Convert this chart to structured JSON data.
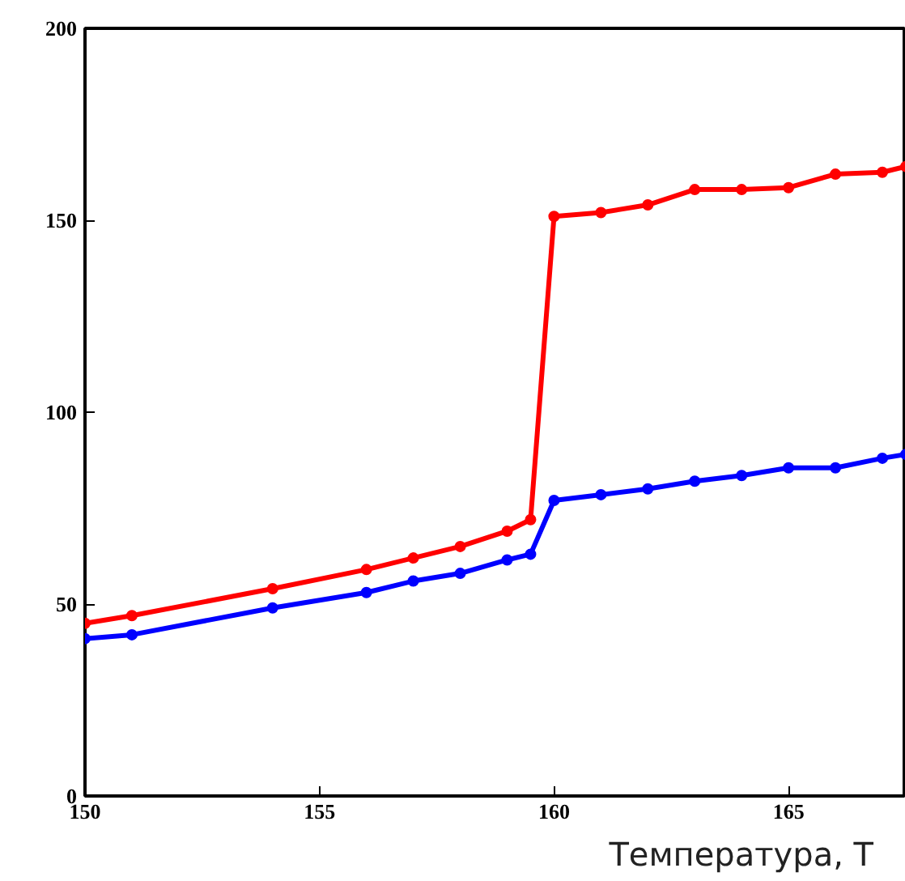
{
  "chart_data": {
    "type": "line",
    "xlabel": "Температура, T",
    "xlim": [
      150,
      167.5
    ],
    "xticks": [
      150,
      155,
      160,
      165
    ],
    "ylim": [
      0,
      200
    ],
    "yticks": [
      0,
      50,
      100,
      150,
      200
    ],
    "grid": false,
    "marker": "circle",
    "line_style": "solid",
    "series": [
      {
        "color": "#ff0000",
        "x": [
          150,
          151,
          154,
          156,
          157,
          158,
          159,
          159.5,
          160,
          161,
          162,
          163,
          164,
          165,
          166,
          167,
          167.5
        ],
        "values": [
          45,
          47,
          54,
          59,
          62,
          65,
          69,
          72,
          151,
          152,
          154,
          158,
          158,
          158.5,
          162,
          162.5,
          164
        ]
      },
      {
        "color": "#0000ff",
        "x": [
          150,
          151,
          154,
          156,
          157,
          158,
          159,
          159.5,
          160,
          161,
          162,
          163,
          164,
          165,
          166,
          167,
          167.5
        ],
        "values": [
          41,
          42,
          49,
          53,
          56,
          58,
          61.5,
          63,
          77,
          78.5,
          80,
          82,
          83.5,
          85.5,
          85.5,
          88,
          89
        ]
      }
    ]
  }
}
